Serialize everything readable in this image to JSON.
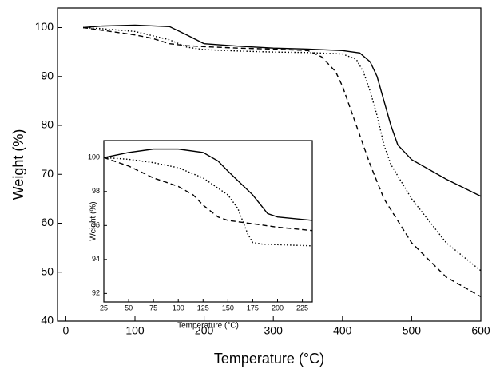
{
  "chart_data": [
    {
      "type": "line",
      "xlabel": "Temperature (°C)",
      "ylabel": "Weight (%)",
      "xlim": [
        -12,
        600
      ],
      "xticks": [
        0,
        100,
        200,
        300,
        400,
        500,
        600
      ],
      "ylim": [
        40,
        104
      ],
      "yticks": [
        40,
        50,
        60,
        70,
        80,
        90,
        100
      ],
      "series": [
        {
          "color": "#000000",
          "style": "solid",
          "x": [
            25,
            50,
            100,
            150,
            175,
            200,
            250,
            300,
            350,
            400,
            425,
            440,
            450,
            460,
            470,
            480,
            500,
            550,
            600
          ],
          "values": [
            100,
            100.3,
            100.5,
            100.2,
            98.5,
            96.7,
            96.2,
            95.8,
            95.6,
            95.3,
            94.8,
            93,
            90,
            85,
            80,
            76,
            73,
            69,
            65.5
          ]
        },
        {
          "color": "#000000",
          "style": "dotted",
          "x": [
            25,
            50,
            100,
            150,
            175,
            200,
            250,
            300,
            350,
            400,
            420,
            430,
            440,
            450,
            460,
            470,
            500,
            550,
            600
          ],
          "values": [
            100,
            99.8,
            99.2,
            97.5,
            96,
            95.5,
            95.2,
            95,
            94.9,
            94.6,
            93.5,
            91,
            87,
            82,
            76,
            72,
            65,
            56,
            50.3
          ]
        },
        {
          "color": "#000000",
          "style": "dashed",
          "x": [
            25,
            50,
            100,
            125,
            150,
            175,
            200,
            250,
            300,
            350,
            370,
            390,
            400,
            410,
            420,
            440,
            460,
            500,
            550,
            600
          ],
          "values": [
            100,
            99.5,
            98.5,
            97.8,
            96.7,
            96.3,
            96.1,
            95.8,
            95.6,
            95.3,
            94,
            91,
            88,
            84,
            80,
            72,
            65,
            56,
            49,
            45
          ]
        }
      ]
    },
    {
      "type": "line",
      "xlabel": "Temperature (°C)",
      "ylabel": "Weight (%)",
      "xlim": [
        25,
        235
      ],
      "xticks": [
        25,
        50,
        75,
        100,
        125,
        150,
        175,
        200,
        225
      ],
      "ylim": [
        91.5,
        101
      ],
      "yticks": [
        92,
        94,
        96,
        98,
        100
      ],
      "series": [
        {
          "color": "#000000",
          "style": "solid",
          "x": [
            25,
            50,
            75,
            100,
            125,
            140,
            150,
            175,
            190,
            200,
            235
          ],
          "values": [
            100,
            100.3,
            100.5,
            100.5,
            100.3,
            99.8,
            99.2,
            97.8,
            96.7,
            96.5,
            96.3
          ]
        },
        {
          "color": "#000000",
          "style": "dotted",
          "x": [
            25,
            50,
            75,
            100,
            125,
            150,
            160,
            170,
            175,
            185,
            235
          ],
          "values": [
            100,
            99.9,
            99.7,
            99.4,
            98.8,
            97.8,
            97,
            95.5,
            95,
            94.9,
            94.8
          ]
        },
        {
          "color": "#000000",
          "style": "dashed",
          "x": [
            25,
            50,
            75,
            100,
            115,
            125,
            140,
            150,
            175,
            200,
            235
          ],
          "values": [
            100,
            99.5,
            98.8,
            98.3,
            97.8,
            97.2,
            96.5,
            96.3,
            96.1,
            95.9,
            95.7
          ]
        }
      ]
    }
  ]
}
